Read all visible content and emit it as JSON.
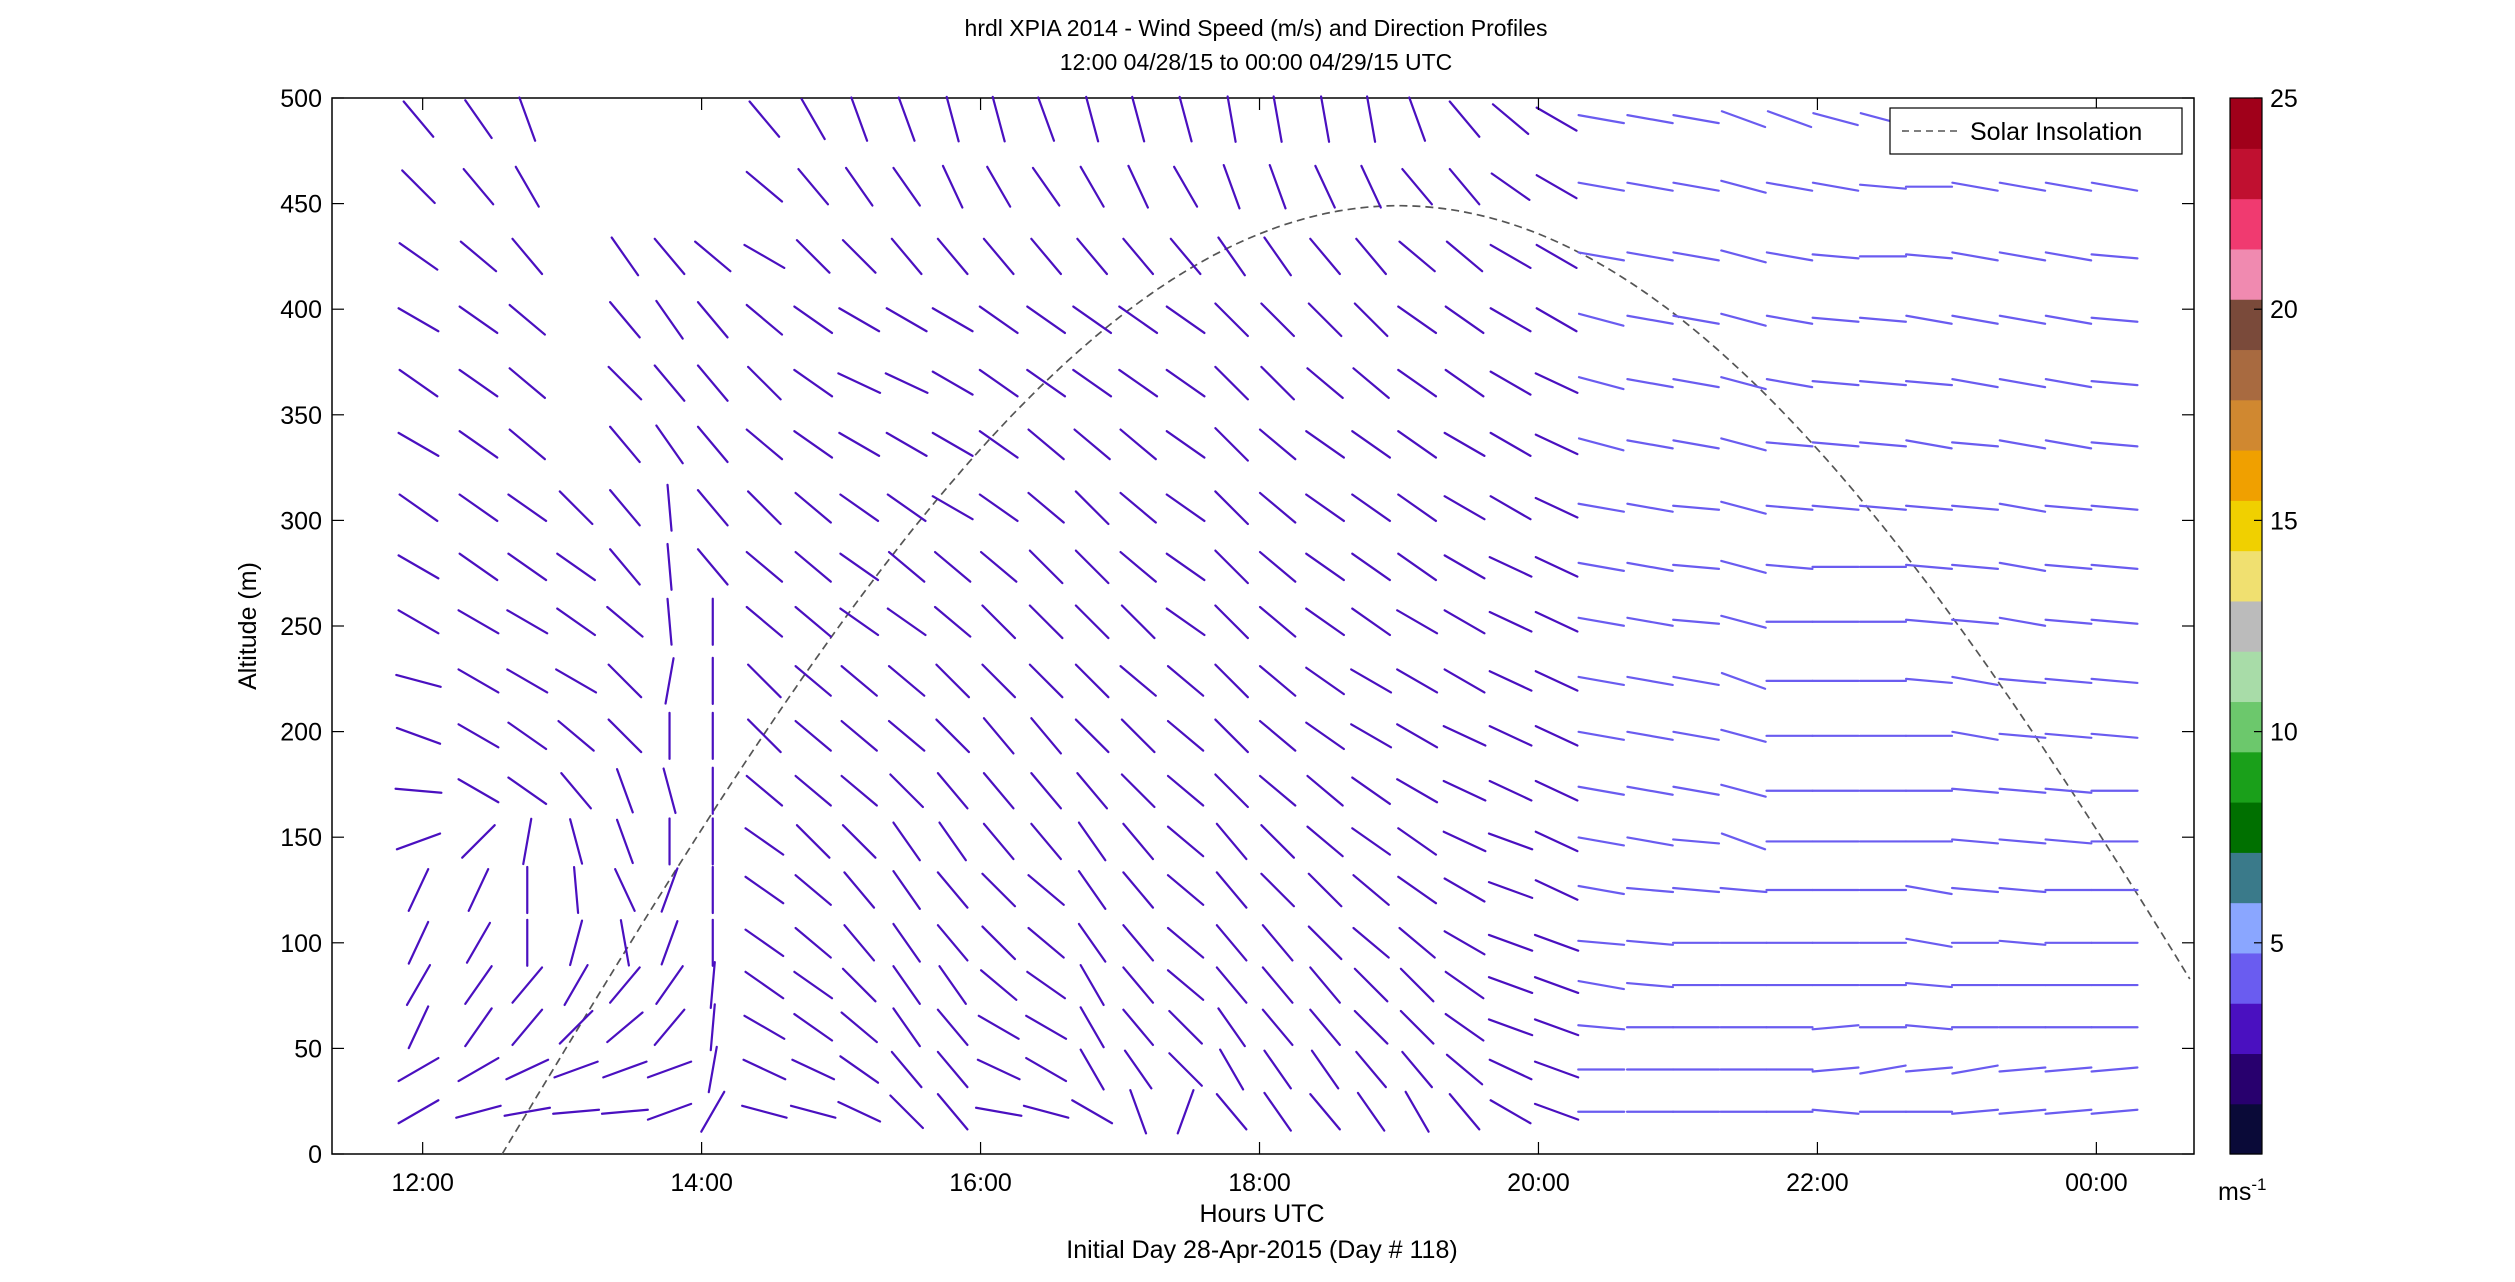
{
  "chart_data": {
    "type": "wind-barb-profile",
    "title": "hrdl XPIA 2014 - Wind Speed (m/s) and Direction Profiles",
    "subtitle": "12:00 04/28/15 to 00:00 04/29/15  UTC",
    "xlabel": "Hours UTC",
    "xlabel2": "Initial Day 28-Apr-2015 (Day # 118)",
    "ylabel": "Altitude (m)",
    "xlim": [
      11.35,
      24.7
    ],
    "ylim": [
      0,
      500
    ],
    "x_ticks": [
      {
        "value": 12,
        "label": "12:00"
      },
      {
        "value": 14,
        "label": "14:00"
      },
      {
        "value": 16,
        "label": "16:00"
      },
      {
        "value": 18,
        "label": "18:00"
      },
      {
        "value": 20,
        "label": "20:00"
      },
      {
        "value": 22,
        "label": "22:00"
      },
      {
        "value": 24,
        "label": "00:00"
      }
    ],
    "y_ticks": [
      0,
      50,
      100,
      150,
      200,
      250,
      300,
      350,
      400,
      450,
      500
    ],
    "colorbar": {
      "unit": "ms",
      "unit_exp": "-1",
      "range": [
        0,
        25
      ],
      "ticks": [
        5,
        10,
        15,
        20,
        25
      ],
      "colors": [
        "#0a0a38",
        "#28006e",
        "#4a10c0",
        "#6a5cf0",
        "#8aa6ff",
        "#3a7a8a",
        "#007000",
        "#1aa01a",
        "#6cc86c",
        "#a8dca8",
        "#bbbbbb",
        "#f0e070",
        "#f0d000",
        "#f0a000",
        "#d08830",
        "#a86a40",
        "#7a4a3a",
        "#f08ab0",
        "#f03a70",
        "#c01030",
        "#a0001a"
      ]
    },
    "legend": {
      "position": "top-right",
      "entries": [
        "Solar Insolation"
      ]
    },
    "solar_insolation": {
      "style": "dashed",
      "color": "#555555",
      "start_hour": 12.57,
      "peak_hour": 19.0,
      "peak_altitude": 449
    },
    "wind_profiles": {
      "time_step_hours": 0.333,
      "altitudes": [
        20,
        40,
        60,
        80,
        100,
        125,
        148,
        172,
        198,
        224,
        252,
        278,
        306,
        336,
        365,
        395,
        425,
        458,
        490
      ],
      "columns": [
        {
          "t": 11.97,
          "speed": 3.5,
          "dir": [
            240,
            240,
            205,
            210,
            205,
            205,
            250,
            275,
            290,
            285,
            300,
            300,
            305,
            300,
            305,
            300,
            305,
            315,
            320
          ]
        },
        {
          "t": 12.4,
          "speed": 3,
          "dir": [
            255,
            240,
            215,
            215,
            210,
            205,
            225,
            300,
            300,
            300,
            300,
            305,
            305,
            305,
            305,
            305,
            310,
            320,
            325
          ]
        },
        {
          "t": 12.75,
          "speed": 3,
          "dir": [
            260,
            245,
            220,
            220,
            180,
            180,
            190,
            305,
            305,
            300,
            300,
            305,
            305,
            310,
            310,
            310,
            320,
            330,
            340
          ]
        },
        {
          "t": 13.1,
          "speed": 3.5,
          "dir": [
            265,
            250,
            225,
            210,
            195,
            175,
            165,
            320,
            310,
            300,
            305,
            305,
            315,
            null,
            null,
            null,
            null,
            null,
            null
          ]
        },
        {
          "t": 13.45,
          "speed": 3.5,
          "dir": [
            265,
            250,
            230,
            220,
            170,
            155,
            160,
            340,
            315,
            315,
            310,
            320,
            320,
            320,
            315,
            320,
            325,
            null,
            null
          ]
        },
        {
          "t": 13.77,
          "speed": 3.5,
          "dir": [
            250,
            250,
            220,
            215,
            200,
            200,
            180,
            165,
            180,
            190,
            175,
            175,
            175,
            325,
            320,
            325,
            320,
            null,
            null
          ]
        },
        {
          "t": 14.08,
          "speed": 3.5,
          "dir": [
            210,
            190,
            185,
            185,
            180,
            180,
            180,
            180,
            180,
            180,
            180,
            320,
            320,
            320,
            320,
            320,
            310,
            null,
            null
          ]
        },
        {
          "t": 14.45,
          "speed": 3.5,
          "dir": [
            285,
            295,
            300,
            305,
            305,
            305,
            305,
            310,
            315,
            315,
            310,
            310,
            315,
            310,
            315,
            310,
            300,
            310,
            320
          ]
        },
        {
          "t": 14.8,
          "speed": 3.5,
          "dir": [
            285,
            295,
            305,
            305,
            310,
            310,
            315,
            310,
            310,
            310,
            310,
            310,
            310,
            305,
            305,
            305,
            315,
            320,
            330
          ]
        },
        {
          "t": 15.13,
          "speed": 3.5,
          "dir": [
            295,
            305,
            310,
            315,
            320,
            320,
            315,
            310,
            310,
            310,
            305,
            305,
            305,
            300,
            295,
            300,
            315,
            325,
            340
          ]
        },
        {
          "t": 15.47,
          "speed": 3.5,
          "dir": [
            315,
            320,
            325,
            325,
            325,
            325,
            325,
            315,
            310,
            310,
            305,
            310,
            305,
            300,
            295,
            300,
            320,
            325,
            340
          ]
        },
        {
          "t": 15.8,
          "speed": 3.5,
          "dir": [
            320,
            320,
            320,
            325,
            320,
            320,
            325,
            320,
            315,
            315,
            310,
            310,
            300,
            300,
            300,
            300,
            320,
            335,
            345
          ]
        },
        {
          "t": 16.13,
          "speed": 3.5,
          "dir": [
            280,
            295,
            300,
            310,
            315,
            315,
            320,
            320,
            320,
            315,
            315,
            310,
            305,
            305,
            305,
            305,
            320,
            330,
            345
          ]
        },
        {
          "t": 16.47,
          "speed": 3.5,
          "dir": [
            285,
            300,
            300,
            305,
            310,
            310,
            320,
            320,
            320,
            315,
            315,
            315,
            310,
            310,
            305,
            305,
            320,
            325,
            340
          ]
        },
        {
          "t": 16.8,
          "speed": 3.5,
          "dir": [
            300,
            330,
            330,
            330,
            325,
            325,
            325,
            320,
            315,
            315,
            315,
            315,
            315,
            310,
            305,
            305,
            320,
            330,
            345
          ]
        },
        {
          "t": 17.13,
          "speed": 3.5,
          "dir": [
            340,
            325,
            320,
            320,
            320,
            320,
            320,
            315,
            315,
            310,
            315,
            310,
            310,
            310,
            305,
            305,
            320,
            335,
            345
          ]
        },
        {
          "t": 17.47,
          "speed": 3.5,
          "dir": [
            200,
            315,
            315,
            310,
            310,
            310,
            310,
            310,
            310,
            310,
            305,
            305,
            305,
            305,
            305,
            305,
            320,
            330,
            345
          ]
        },
        {
          "t": 17.8,
          "speed": 3.5,
          "dir": [
            320,
            330,
            325,
            320,
            320,
            320,
            320,
            315,
            315,
            315,
            315,
            315,
            315,
            315,
            315,
            315,
            325,
            340,
            350
          ]
        },
        {
          "t": 18.13,
          "speed": 3.5,
          "dir": [
            325,
            325,
            320,
            320,
            320,
            315,
            315,
            310,
            310,
            310,
            310,
            310,
            310,
            310,
            315,
            315,
            325,
            340,
            350
          ]
        },
        {
          "t": 18.47,
          "speed": 3.5,
          "dir": [
            320,
            325,
            320,
            320,
            315,
            315,
            310,
            310,
            305,
            305,
            305,
            305,
            305,
            305,
            310,
            315,
            320,
            335,
            350
          ]
        },
        {
          "t": 18.8,
          "speed": 3.5,
          "dir": [
            325,
            320,
            315,
            315,
            310,
            310,
            305,
            305,
            300,
            300,
            305,
            305,
            305,
            305,
            310,
            315,
            320,
            335,
            350
          ]
        },
        {
          "t": 19.13,
          "speed": 3.5,
          "dir": [
            330,
            320,
            315,
            315,
            310,
            305,
            305,
            300,
            300,
            300,
            300,
            305,
            305,
            305,
            305,
            305,
            310,
            320,
            340
          ]
        },
        {
          "t": 19.47,
          "speed": 3.5,
          "dir": [
            320,
            310,
            305,
            305,
            300,
            300,
            295,
            295,
            295,
            300,
            300,
            300,
            300,
            300,
            305,
            305,
            310,
            320,
            320
          ]
        },
        {
          "t": 19.8,
          "speed": 3.5,
          "dir": [
            300,
            295,
            290,
            290,
            290,
            290,
            290,
            295,
            295,
            295,
            295,
            295,
            300,
            300,
            300,
            300,
            300,
            305,
            310
          ]
        },
        {
          "t": 20.13,
          "speed": 3.5,
          "dir": [
            290,
            290,
            290,
            290,
            290,
            295,
            295,
            295,
            295,
            295,
            295,
            295,
            295,
            295,
            295,
            300,
            300,
            300,
            300
          ]
        },
        {
          "t": 20.45,
          "speed": 4,
          "dir": [
            270,
            270,
            275,
            280,
            275,
            280,
            280,
            280,
            280,
            280,
            280,
            280,
            280,
            285,
            285,
            285,
            280,
            280,
            280
          ]
        },
        {
          "t": 20.8,
          "speed": 4.5,
          "dir": [
            270,
            270,
            270,
            275,
            275,
            275,
            280,
            280,
            280,
            280,
            280,
            280,
            280,
            280,
            280,
            280,
            280,
            280,
            280
          ]
        },
        {
          "t": 21.13,
          "speed": 4.5,
          "dir": [
            270,
            270,
            270,
            270,
            270,
            275,
            275,
            280,
            280,
            280,
            275,
            275,
            275,
            280,
            280,
            280,
            280,
            280,
            280
          ]
        },
        {
          "t": 21.47,
          "speed": 4.5,
          "dir": [
            270,
            270,
            270,
            270,
            270,
            275,
            290,
            285,
            285,
            290,
            285,
            285,
            285,
            285,
            285,
            285,
            285,
            285,
            290
          ]
        },
        {
          "t": 21.8,
          "speed": 4,
          "dir": [
            270,
            270,
            270,
            270,
            270,
            270,
            270,
            270,
            270,
            270,
            270,
            275,
            275,
            275,
            280,
            280,
            280,
            280,
            290
          ]
        },
        {
          "t": 22.13,
          "speed": 4,
          "dir": [
            275,
            265,
            265,
            270,
            270,
            270,
            270,
            270,
            270,
            270,
            270,
            270,
            275,
            275,
            275,
            275,
            275,
            280,
            285
          ]
        },
        {
          "t": 22.47,
          "speed": 4.5,
          "dir": [
            270,
            260,
            270,
            270,
            270,
            270,
            270,
            270,
            270,
            270,
            270,
            270,
            275,
            275,
            275,
            275,
            270,
            275,
            285
          ]
        },
        {
          "t": 22.8,
          "speed": 4.5,
          "dir": [
            270,
            265,
            275,
            275,
            280,
            280,
            270,
            270,
            270,
            275,
            275,
            275,
            275,
            280,
            275,
            280,
            275,
            270,
            280
          ]
        },
        {
          "t": 23.13,
          "speed": 4,
          "dir": [
            265,
            260,
            270,
            270,
            270,
            275,
            275,
            275,
            280,
            280,
            275,
            275,
            275,
            275,
            280,
            280,
            280,
            280,
            280
          ]
        },
        {
          "t": 23.47,
          "speed": 4,
          "dir": [
            265,
            265,
            270,
            270,
            275,
            275,
            275,
            275,
            275,
            275,
            280,
            280,
            280,
            280,
            280,
            280,
            280,
            280,
            280
          ]
        },
        {
          "t": 23.8,
          "speed": 4,
          "dir": [
            265,
            265,
            270,
            270,
            270,
            270,
            275,
            275,
            275,
            275,
            275,
            275,
            275,
            280,
            280,
            280,
            280,
            280,
            280
          ]
        },
        {
          "t": 24.13,
          "speed": 4,
          "dir": [
            265,
            265,
            270,
            270,
            270,
            270,
            270,
            270,
            275,
            275,
            275,
            275,
            275,
            275,
            275,
            275,
            275,
            280,
            280
          ]
        }
      ]
    }
  }
}
